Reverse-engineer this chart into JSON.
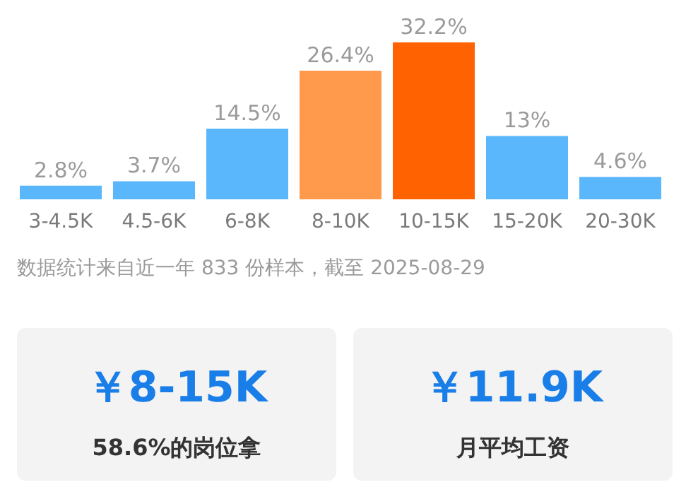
{
  "chart_data": [
    {
      "type": "bar",
      "categories": [
        "3-4.5K",
        "4.5-6K",
        "6-8K",
        "8-10K",
        "10-15K",
        "15-20K",
        "20-30K"
      ],
      "values": [
        2.8,
        3.7,
        14.5,
        26.4,
        32.2,
        13,
        4.6
      ],
      "colors": [
        "#5ab7fb",
        "#5ab7fb",
        "#5ab7fb",
        "#ff9a4d",
        "#ff6200",
        "#5ab7fb",
        "#5ab7fb"
      ],
      "data_labels": true,
      "value_labels": [
        "2.8%",
        "3.7%",
        "14.5%",
        "26.4%",
        "32.2%",
        "13%",
        "4.6%"
      ],
      "annotations": [
        "数据统计来自近一年 833 份样本，截至 2025-08-29"
      ]
    },
    {
      "type": "other",
      "title": "￥8-15K",
      "subtitle": "58.6%的岗位拿"
    },
    {
      "type": "other",
      "title": "￥11.9K",
      "subtitle": "月平均工资"
    }
  ]
}
